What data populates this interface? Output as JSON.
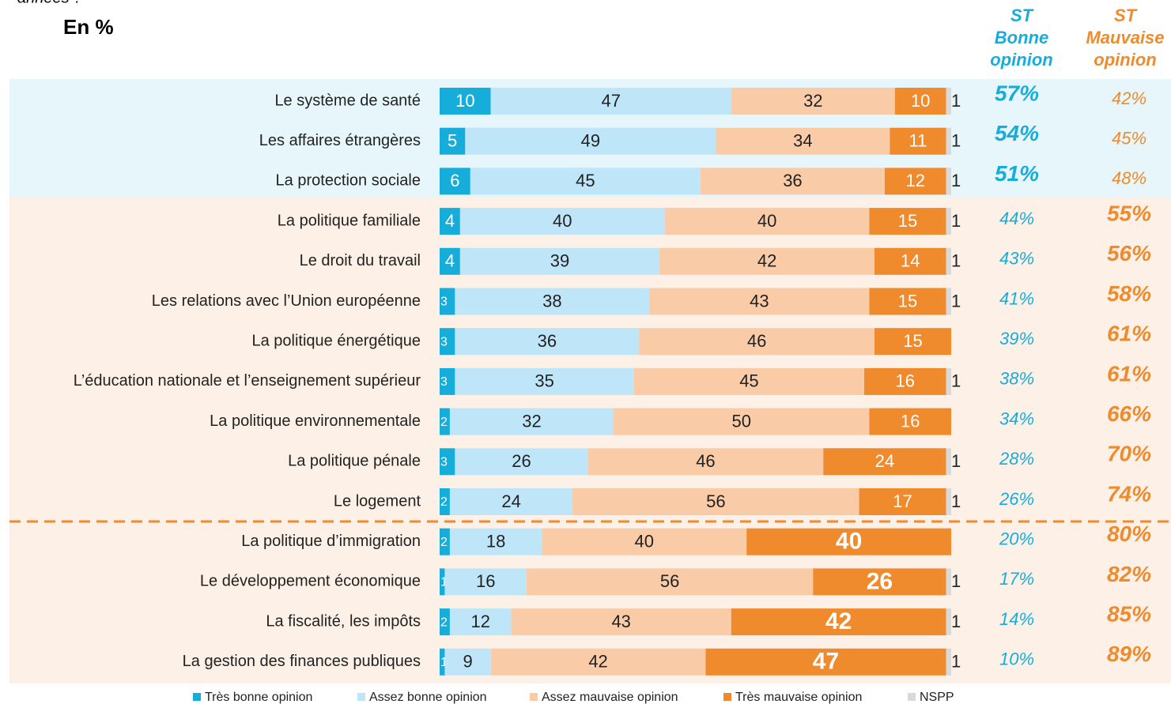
{
  "chart_data": {
    "type": "stacked-barh",
    "fragment": "années ?",
    "title": "En %",
    "categories": [
      "Le système de santé",
      "Les affaires étrangères",
      "La protection sociale",
      "La politique familiale",
      "Le droit du travail",
      "Les relations avec l’Union européenne",
      "La politique énergétique",
      "L’éducation nationale et l’enseignement supérieur",
      "La politique environnementale",
      "La politique pénale",
      "Le logement",
      "La politique d’immigration",
      "Le développement économique",
      "La fiscalité, les impôts",
      "La gestion des finances publiques"
    ],
    "xlim": [
      0,
      100
    ],
    "series": [
      {
        "name": "Très bonne opinion",
        "color": "#17addb",
        "values": [
          10,
          5,
          6,
          4,
          4,
          3,
          3,
          3,
          2,
          3,
          2,
          2,
          1,
          2,
          1
        ]
      },
      {
        "name": "Assez bonne opinion",
        "color": "#bfe6f8",
        "values": [
          47,
          49,
          45,
          40,
          39,
          38,
          36,
          35,
          32,
          26,
          24,
          18,
          16,
          12,
          9
        ]
      },
      {
        "name": "Assez mauvaise opinion",
        "color": "#f9cba7",
        "values": [
          32,
          34,
          36,
          40,
          42,
          43,
          46,
          45,
          50,
          46,
          56,
          40,
          56,
          43,
          42
        ]
      },
      {
        "name": "Très mauvaise opinion",
        "color": "#ef8a2d",
        "values": [
          10,
          11,
          12,
          15,
          14,
          15,
          15,
          16,
          16,
          24,
          17,
          40,
          26,
          42,
          47
        ]
      },
      {
        "name": "NSPP",
        "color": "#d9d9d9",
        "values": [
          1,
          1,
          1,
          1,
          1,
          1,
          null,
          1,
          null,
          1,
          1,
          null,
          1,
          1,
          1
        ]
      }
    ],
    "st_bonne": {
      "header": [
        "ST",
        "Bonne",
        "opinion"
      ],
      "color": "#17addb",
      "values": [
        57,
        54,
        51,
        44,
        43,
        41,
        39,
        38,
        34,
        28,
        26,
        20,
        17,
        14,
        10
      ],
      "value_labels": [
        "57%",
        "54%",
        "51%",
        "44%",
        "43%",
        "41%",
        "39%",
        "38%",
        "34%",
        "28%",
        "26%",
        "20%",
        "17%",
        "14%",
        "10%"
      ]
    },
    "st_mauvaise": {
      "header": [
        "ST",
        "Mauvaise",
        "opinion"
      ],
      "color": "#ef8a2d",
      "values": [
        42,
        45,
        48,
        55,
        56,
        58,
        61,
        61,
        66,
        70,
        74,
        80,
        82,
        85,
        89
      ],
      "value_labels": [
        "42%",
        "45%",
        "48%",
        "55%",
        "56%",
        "58%",
        "61%",
        "61%",
        "66%",
        "70%",
        "74%",
        "80%",
        "82%",
        "85%",
        "89%"
      ]
    }
  }
}
